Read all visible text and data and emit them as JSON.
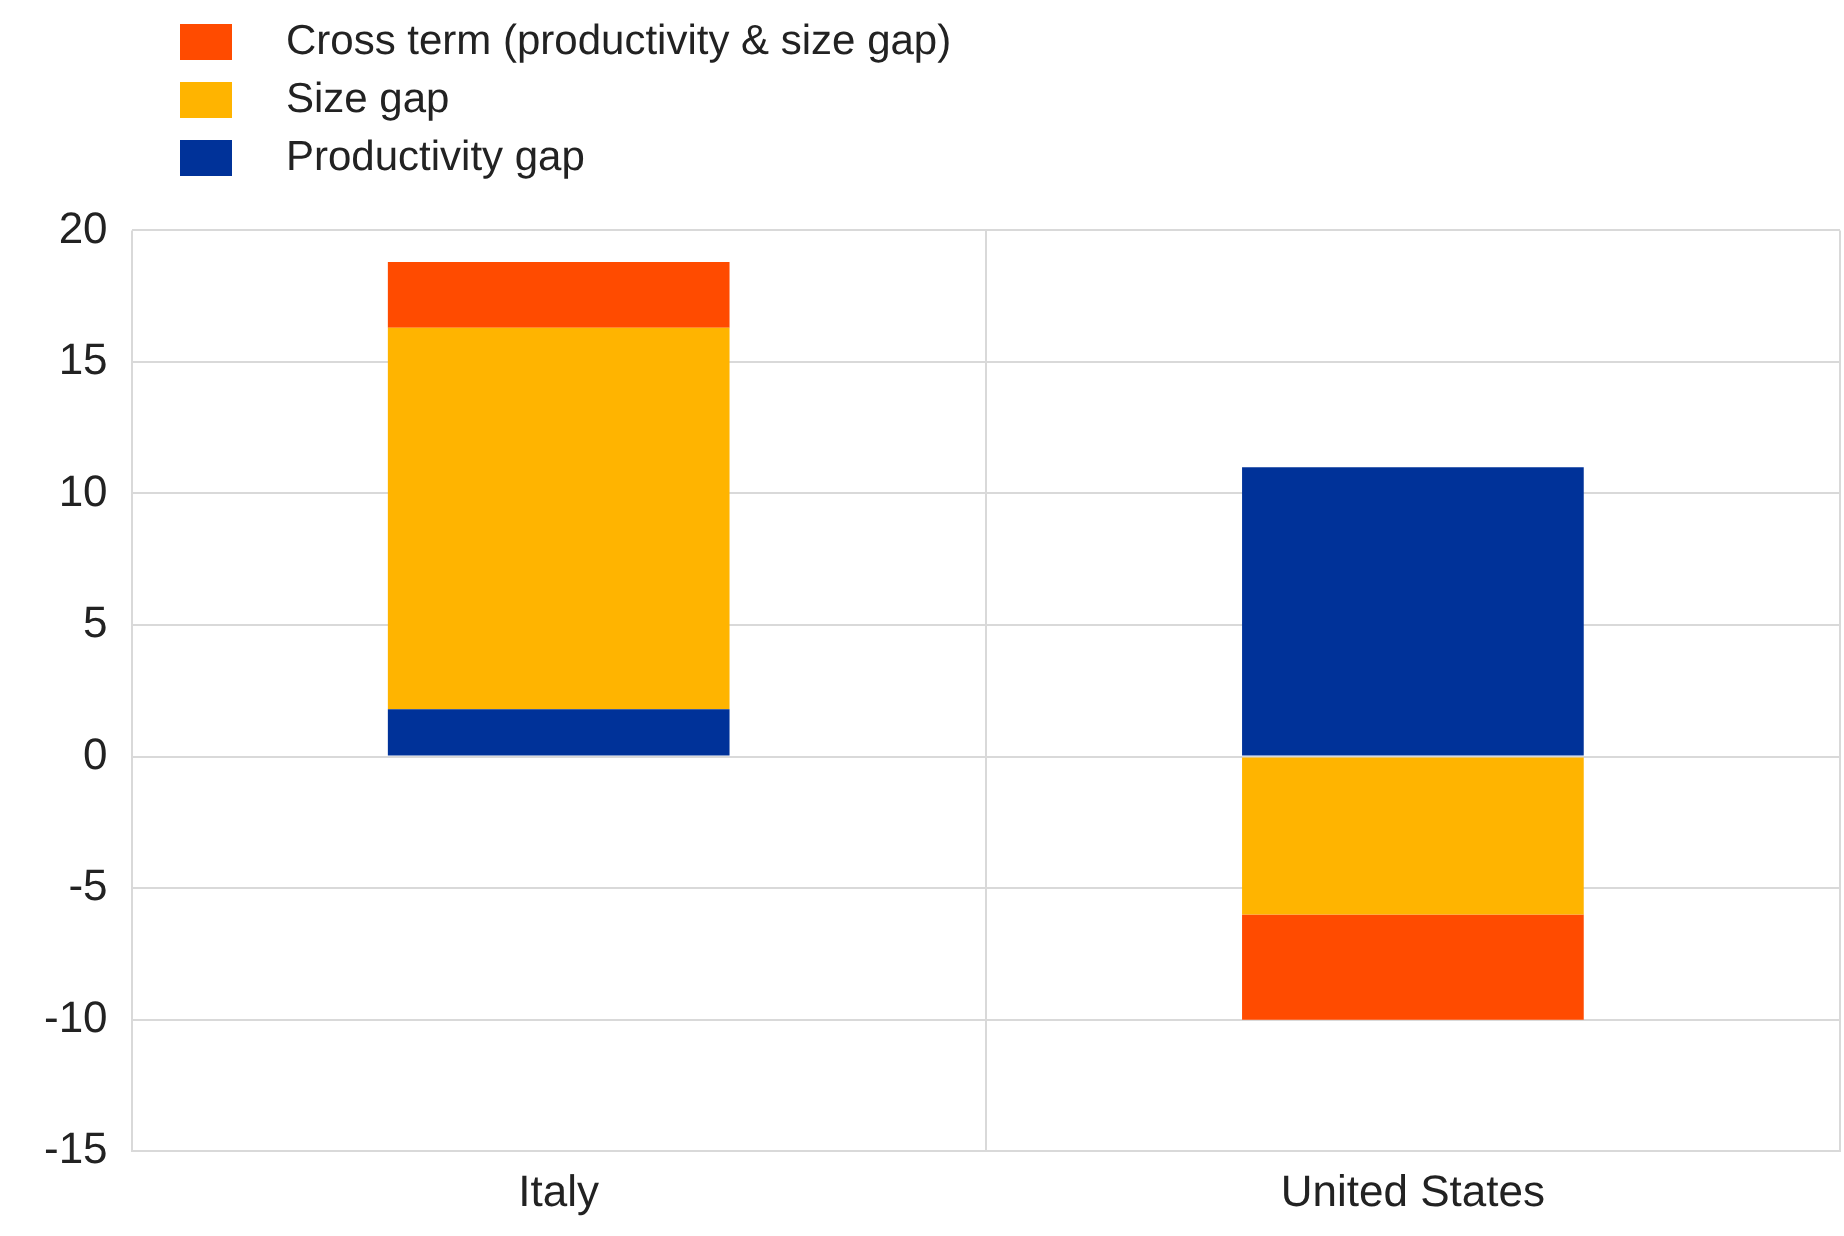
{
  "chart_data": {
    "type": "bar",
    "stacked": true,
    "categories": [
      "Italy",
      "United States"
    ],
    "series": [
      {
        "name": "Productivity gap",
        "color": "#003299",
        "values": [
          1.8,
          11
        ]
      },
      {
        "name": "Size gap",
        "color": "#ffb400",
        "values": [
          14.5,
          -6
        ]
      },
      {
        "name": "Cross term (productivity & size gap)",
        "color": "#ff4b00",
        "values": [
          2.5,
          -4
        ]
      }
    ],
    "ylim": [
      -15,
      20
    ],
    "yticks": [
      -15,
      -10,
      -5,
      0,
      5,
      10,
      15,
      20
    ],
    "grid": true,
    "legend": "top left"
  }
}
